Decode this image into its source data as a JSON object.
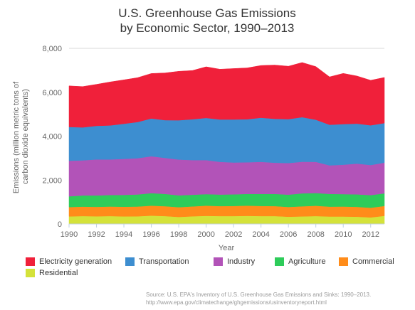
{
  "chart_data": {
    "type": "area",
    "stacked": true,
    "title": "U.S. Greenhouse Gas Emissions",
    "subtitle": "by Economic Sector, 1990–2013",
    "xlabel": "Year",
    "ylabel": "Emissions (million metric tons of carbon dioxide equivalents)",
    "x": [
      1990,
      1991,
      1992,
      1993,
      1994,
      1995,
      1996,
      1997,
      1998,
      1999,
      2000,
      2001,
      2002,
      2003,
      2004,
      2005,
      2006,
      2007,
      2008,
      2009,
      2010,
      2011,
      2012,
      2013
    ],
    "xlim": [
      1990,
      2013
    ],
    "ylim": [
      0,
      8000
    ],
    "x_ticks": [
      "1990",
      "1992",
      "1994",
      "1996",
      "1998",
      "2000",
      "2002",
      "2004",
      "2006",
      "2008",
      "2010",
      "2012"
    ],
    "y_ticks": [
      "0",
      "2,000",
      "4,000",
      "6,000",
      "8,000"
    ],
    "grid": "horizontal",
    "legend_position": "bottom",
    "series": [
      {
        "name": "Residential",
        "color": "#d4e23a",
        "values": [
          345,
          360,
          350,
          360,
          345,
          350,
          380,
          360,
          320,
          350,
          370,
          360,
          360,
          370,
          360,
          360,
          330,
          345,
          360,
          340,
          340,
          330,
          300,
          370
        ]
      },
      {
        "name": "Commercial",
        "color": "#ff8c1a",
        "values": [
          425,
          430,
          430,
          435,
          440,
          445,
          455,
          450,
          445,
          450,
          465,
          455,
          460,
          465,
          460,
          455,
          445,
          460,
          470,
          450,
          455,
          450,
          440,
          450
        ]
      },
      {
        "name": "Agriculture",
        "color": "#2ecc5a",
        "values": [
          490,
          510,
          520,
          525,
          540,
          550,
          570,
          560,
          540,
          530,
          525,
          525,
          530,
          535,
          550,
          555,
          560,
          590,
          580,
          580,
          565,
          570,
          575,
          575
        ]
      },
      {
        "name": "Industry",
        "color": "#b253b8",
        "values": [
          1620,
          1600,
          1640,
          1620,
          1640,
          1650,
          1680,
          1640,
          1630,
          1580,
          1550,
          1490,
          1450,
          1440,
          1460,
          1420,
          1440,
          1440,
          1420,
          1300,
          1340,
          1400,
          1370,
          1400
        ]
      },
      {
        "name": "Transportation",
        "color": "#3d8ed0",
        "values": [
          1540,
          1500,
          1530,
          1550,
          1600,
          1650,
          1720,
          1720,
          1790,
          1860,
          1920,
          1930,
          1960,
          1960,
          2010,
          2000,
          2000,
          2030,
          1920,
          1850,
          1850,
          1820,
          1810,
          1800
        ]
      },
      {
        "name": "Electricity generation",
        "color": "#f0203a",
        "values": [
          1870,
          1860,
          1890,
          1980,
          2000,
          2020,
          2050,
          2150,
          2230,
          2220,
          2330,
          2290,
          2320,
          2340,
          2380,
          2450,
          2410,
          2490,
          2420,
          2180,
          2310,
          2170,
          2050,
          2080
        ]
      }
    ]
  },
  "legend": {
    "items": [
      {
        "label": "Electricity generation",
        "color": "#f0203a"
      },
      {
        "label": "Transportation",
        "color": "#3d8ed0"
      },
      {
        "label": "Industry",
        "color": "#b253b8"
      },
      {
        "label": "Agriculture",
        "color": "#2ecc5a"
      },
      {
        "label": "Commercial",
        "color": "#ff8c1a"
      },
      {
        "label": "Residential",
        "color": "#d4e23a"
      }
    ]
  },
  "source": {
    "line1": "Source: U.S. EPA's Inventory of U.S. Greenhouse Gas Emissions and Sinks: 1990–2013.",
    "line2": "http://www.epa.gov/climatechange/ghgemissions/usinventoryreport.html"
  }
}
